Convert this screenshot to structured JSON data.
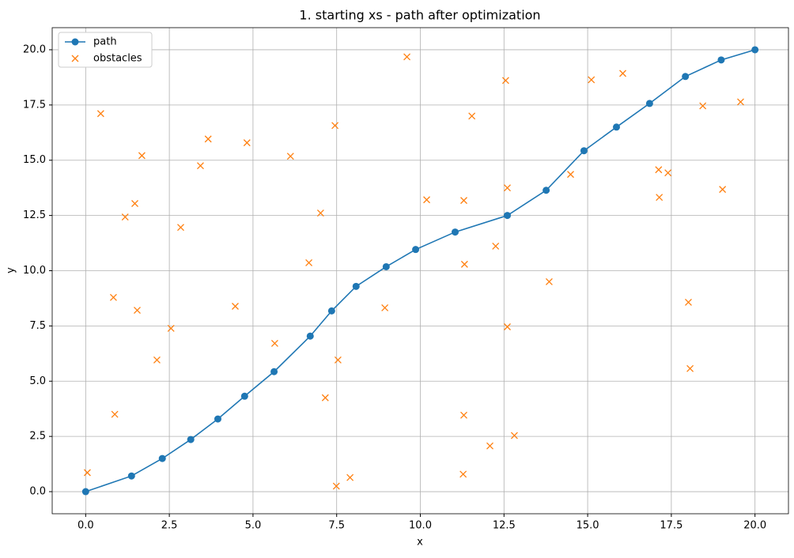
{
  "chart_data": {
    "type": "line",
    "title": "1. starting xs - path after optimization",
    "x_label": "x",
    "y_label": "y",
    "xlim": [
      -1,
      21
    ],
    "ylim": [
      -1,
      21
    ],
    "xticks": [
      {
        "value": 0,
        "label": "0.0"
      },
      {
        "value": 2.5,
        "label": "2.5"
      },
      {
        "value": 5,
        "label": "5.0"
      },
      {
        "value": 7.5,
        "label": "7.5"
      },
      {
        "value": 10,
        "label": "10.0"
      },
      {
        "value": 12.5,
        "label": "12.5"
      },
      {
        "value": 15,
        "label": "15.0"
      },
      {
        "value": 17.5,
        "label": "17.5"
      },
      {
        "value": 20,
        "label": "20.0"
      }
    ],
    "yticks": [
      {
        "value": 0,
        "label": "0.0"
      },
      {
        "value": 2.5,
        "label": "2.5"
      },
      {
        "value": 5,
        "label": "5.0"
      },
      {
        "value": 7.5,
        "label": "7.5"
      },
      {
        "value": 10,
        "label": "10.0"
      },
      {
        "value": 12.5,
        "label": "12.5"
      },
      {
        "value": 15,
        "label": "15.0"
      },
      {
        "value": 17.5,
        "label": "17.5"
      },
      {
        "value": 20,
        "label": "20.0"
      }
    ],
    "grid": true,
    "legend": "upper-left",
    "series": [
      {
        "name": "path",
        "color": "#1f77b4",
        "marker": "o",
        "line": true,
        "x": [
          0,
          1.37,
          2.29,
          3.14,
          3.95,
          4.75,
          5.63,
          6.71,
          7.35,
          8.08,
          8.98,
          9.86,
          11.04,
          12.6,
          13.76,
          14.89,
          15.86,
          16.85,
          17.92,
          18.99,
          20
        ],
        "values": [
          0,
          0.71,
          1.5,
          2.36,
          3.29,
          4.32,
          5.43,
          7.04,
          8.18,
          9.29,
          10.18,
          10.96,
          11.75,
          12.5,
          13.64,
          15.43,
          16.5,
          17.57,
          18.79,
          19.54,
          20
        ]
      },
      {
        "name": "obstacles",
        "color": "#ff7f0e",
        "marker": "x",
        "line": false,
        "x": [
          0.05,
          0.45,
          1.68,
          1.47,
          1.18,
          2.84,
          3.66,
          3.43,
          4.82,
          6.12,
          7.45,
          7.02,
          6.67,
          4.47,
          2.55,
          1.54,
          0.83,
          2.13,
          0.87,
          5.65,
          7.54,
          7.16,
          7.49,
          7.9,
          8.94,
          9.6,
          10.19,
          11.3,
          11.54,
          11.32,
          12.25,
          12.55,
          12.6,
          12.6,
          11.3,
          12.08,
          12.81,
          11.28,
          13.85,
          14.49,
          15.11,
          16.05,
          17.12,
          17.4,
          17.14,
          18.44,
          19.57,
          19.03,
          18.01,
          18.06
        ],
        "values": [
          0.86,
          17.11,
          15.21,
          13.04,
          12.43,
          11.96,
          15.96,
          14.75,
          15.79,
          15.18,
          16.57,
          12.61,
          10.36,
          8.39,
          7.39,
          8.21,
          8.79,
          5.96,
          3.5,
          6.71,
          5.96,
          4.25,
          0.25,
          0.64,
          8.32,
          19.68,
          13.21,
          13.18,
          17.0,
          10.29,
          11.11,
          18.61,
          13.75,
          7.46,
          3.46,
          2.07,
          2.54,
          0.79,
          9.5,
          14.36,
          18.64,
          18.93,
          14.57,
          14.43,
          13.32,
          17.46,
          17.64,
          13.68,
          8.57,
          5.57
        ]
      }
    ]
  }
}
